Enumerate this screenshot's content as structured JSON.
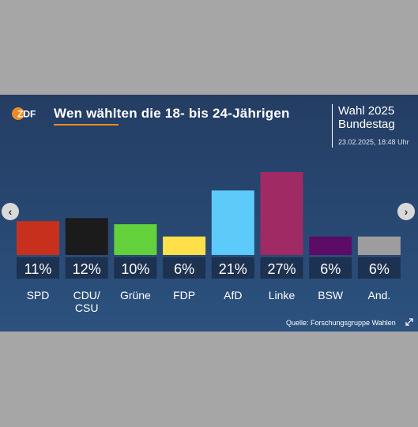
{
  "header": {
    "logo_text": "ZDF",
    "title": "Wen wählten die 18- bis 24-Jährigen",
    "election_line1": "Wahl 2025",
    "election_line2": "Bundestag",
    "timestamp": "23.02.2025, 18:48 Uhr"
  },
  "nav": {
    "prev_symbol": "‹",
    "next_symbol": "›"
  },
  "footer": {
    "source": "Quelle: Forschungsgruppe Wahlen",
    "expand_icon": "expand-icon"
  },
  "colors": {
    "accent": "#f08a24",
    "label_box": "#1d3150"
  },
  "chart_data": {
    "type": "bar",
    "title": "Wen wählten die 18- bis 24-Jährigen",
    "categories": [
      "SPD",
      "CDU/\nCSU",
      "Grüne",
      "FDP",
      "AfD",
      "Linke",
      "BSW",
      "And."
    ],
    "values": [
      11,
      12,
      10,
      6,
      21,
      27,
      6,
      6
    ],
    "value_labels": [
      "11%",
      "12%",
      "10%",
      "6%",
      "21%",
      "27%",
      "6%",
      "6%"
    ],
    "colors": [
      "#c8301e",
      "#1b1b1b",
      "#63d13b",
      "#ffe04a",
      "#5ccbf9",
      "#a02a64",
      "#5b0c66",
      "#9d9d9d"
    ],
    "unit": "%",
    "ylim": [
      0,
      27
    ],
    "grid": false,
    "legend": "none"
  }
}
